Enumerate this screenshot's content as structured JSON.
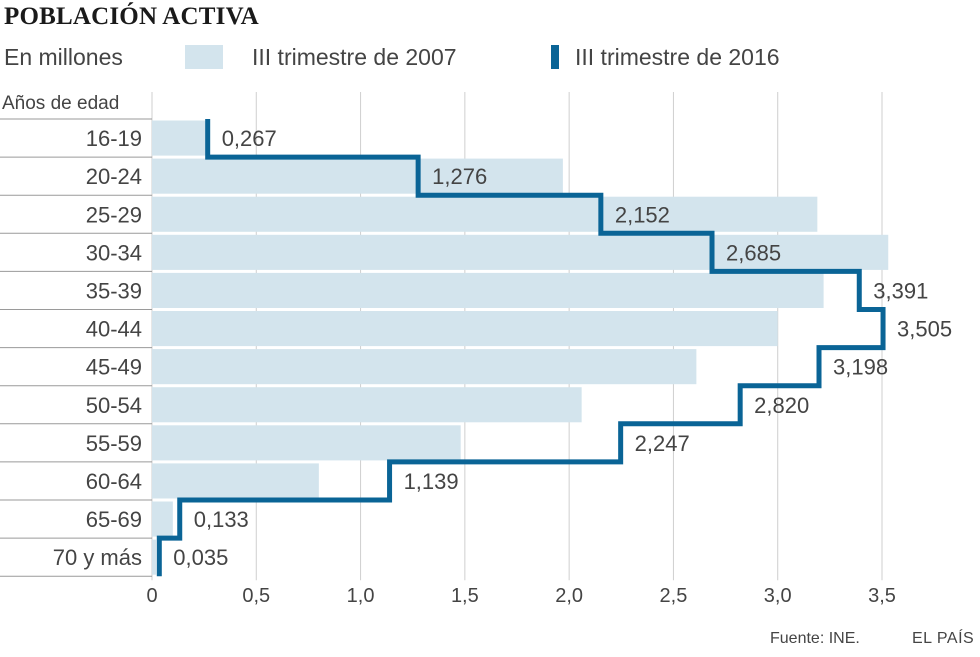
{
  "title": "POBLACIÓN ACTIVA",
  "subtitle": "En millones",
  "legend": {
    "series_2007": "III trimestre de 2007",
    "series_2016": "III trimestre de 2016"
  },
  "colors": {
    "bar_2007": "#d3e4ed",
    "line_2016": "#0a6496",
    "grid": "#cfcfcf",
    "text": "#444444"
  },
  "footer": {
    "source": "Fuente: INE.",
    "brand": "EL PAÍS"
  },
  "chart_data": {
    "type": "bar",
    "orientation": "horizontal",
    "ylabel": "Años de edad",
    "categories": [
      "16-19",
      "20-24",
      "25-29",
      "30-34",
      "35-39",
      "40-44",
      "45-49",
      "50-54",
      "55-59",
      "60-64",
      "65-69",
      "70 y más"
    ],
    "series": [
      {
        "name": "III trimestre de 2007",
        "style": "bar",
        "values": [
          0.26,
          1.97,
          3.19,
          3.53,
          3.22,
          3.0,
          2.61,
          2.06,
          1.48,
          0.8,
          0.1,
          0.02
        ]
      },
      {
        "name": "III trimestre de 2016",
        "style": "step-line",
        "values": [
          0.267,
          1.276,
          2.152,
          2.685,
          3.391,
          3.505,
          3.198,
          2.82,
          2.247,
          1.139,
          0.133,
          0.035
        ],
        "labels": [
          "0,267",
          "1,276",
          "2,152",
          "2,685",
          "3,391",
          "3,505",
          "3,198",
          "2,820",
          "2,247",
          "1,139",
          "0,133",
          "0,035"
        ]
      }
    ],
    "xlim": [
      0,
      3.5
    ],
    "xticks": [
      0,
      0.5,
      1.0,
      1.5,
      2.0,
      2.5,
      3.0,
      3.5
    ],
    "xtick_labels": [
      "0",
      "0,5",
      "1,0",
      "1,5",
      "2,0",
      "2,5",
      "3,0",
      "3,5"
    ],
    "grid": true,
    "legend_position": "top"
  }
}
